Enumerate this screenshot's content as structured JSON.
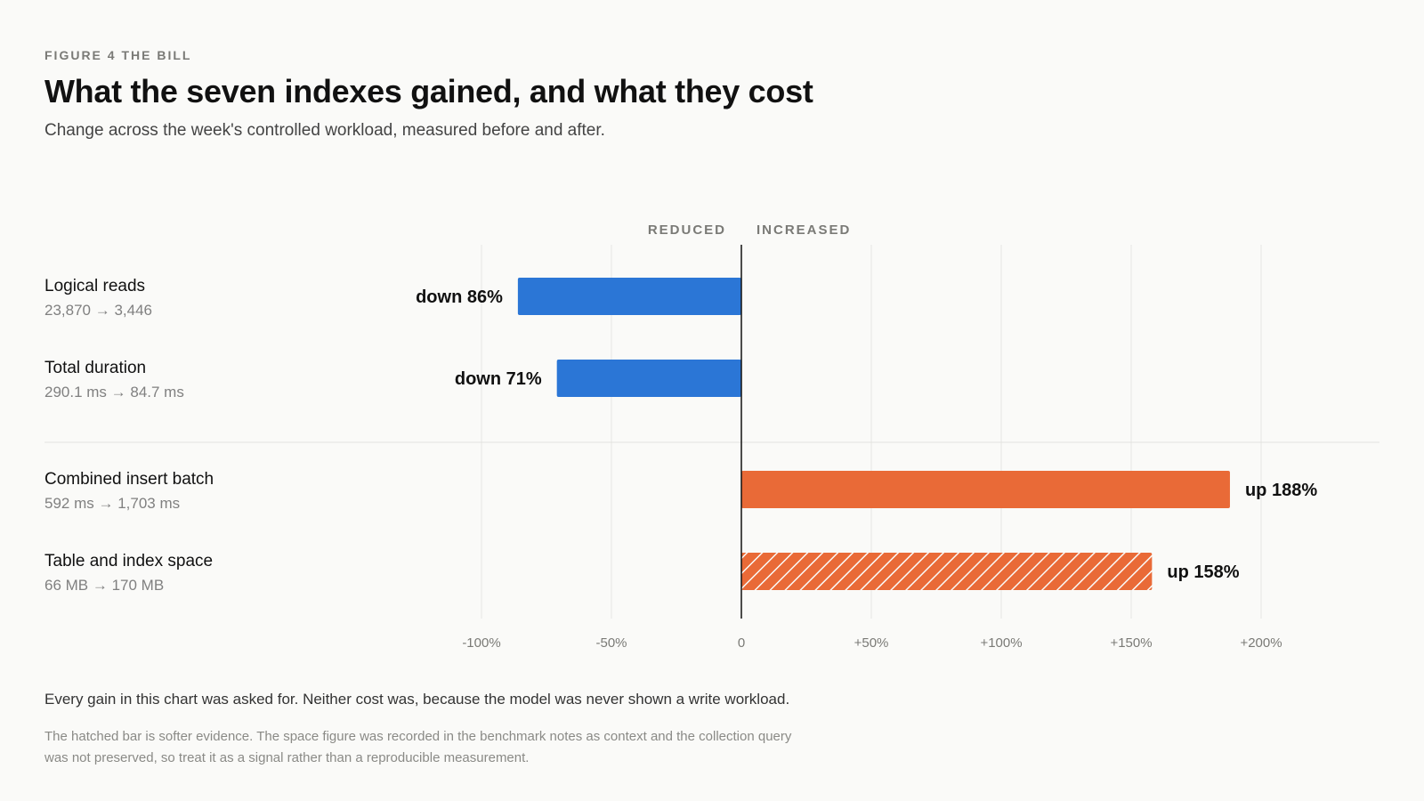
{
  "header": {
    "kicker": "FIGURE 4 THE BILL",
    "title": "What the seven indexes gained, and what they cost",
    "subtitle": "Change across the week's controlled workload, measured before and after."
  },
  "chart_data": {
    "type": "bar",
    "orientation": "horizontal",
    "direction_labels": {
      "left": "REDUCED",
      "right": "INCREASED"
    },
    "xlim": [
      -100,
      200
    ],
    "x_ticks": [
      -100,
      -50,
      0,
      50,
      100,
      150,
      200
    ],
    "x_tick_labels": [
      "-100%",
      "-50%",
      "0",
      "+50%",
      "+100%",
      "+150%",
      "+200%"
    ],
    "grid": true,
    "rows": [
      {
        "label": "Logical reads",
        "detail": "23,870 → 3,446",
        "value": -86,
        "value_label": "down 86%",
        "color": "#2b76d6",
        "hatched": false
      },
      {
        "label": "Total duration",
        "detail": "290.1 ms → 84.7 ms",
        "value": -71,
        "value_label": "down 71%",
        "color": "#2b76d6",
        "hatched": false
      },
      {
        "label": "Combined insert batch",
        "detail": "592 ms → 1,703 ms",
        "value": 188,
        "value_label": "up 188%",
        "color": "#e96a37",
        "hatched": false
      },
      {
        "label": "Table and index space",
        "detail": "66 MB → 170 MB",
        "value": 158,
        "value_label": "up 158%",
        "color": "#e96a37",
        "hatched": true
      }
    ]
  },
  "footer": {
    "note": "Every gain in this chart was asked for. Neither cost was, because the model was never shown a write workload.",
    "footnote": "The hatched bar is softer evidence. The space figure was recorded in the benchmark notes as context and the collection query was not preserved, so treat it as a signal rather than a reproducible measurement."
  }
}
